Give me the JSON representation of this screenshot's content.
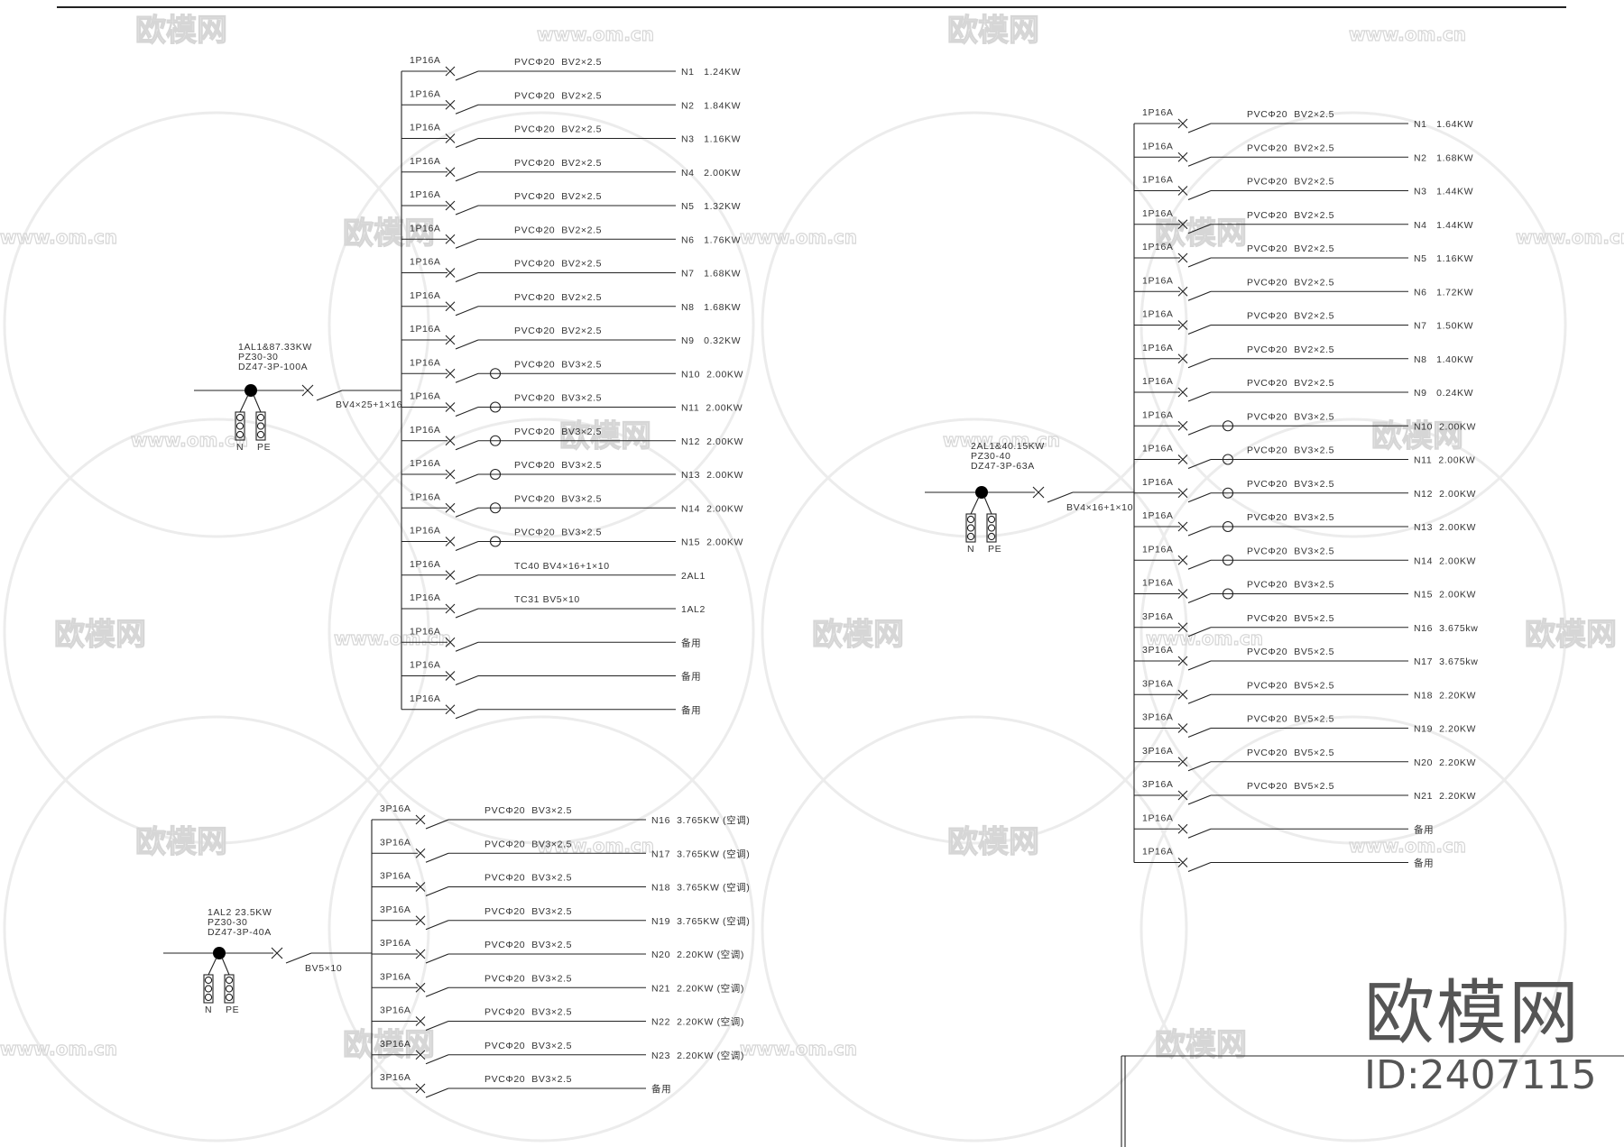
{
  "watermarks": {
    "logo_text": "欧模网",
    "site_text": "www.om.cn",
    "brand": "欧模网",
    "brand_id": "ID:2407115"
  },
  "panels": [
    {
      "id": "1AL1",
      "incoming": {
        "labels": [
          "1AL1&87.33KW",
          "PZ30-30",
          "DZ47-3P-100A"
        ],
        "cable": "BV4×25+1×16",
        "terminal_n": "N",
        "terminal_pe": "PE"
      },
      "circuits": [
        {
          "breaker": "1P16A",
          "cable": "PVCΦ20  BV2×2.5",
          "load": "N1   1.24KW"
        },
        {
          "breaker": "1P16A",
          "cable": "PVCΦ20  BV2×2.5",
          "load": "N2   1.84KW"
        },
        {
          "breaker": "1P16A",
          "cable": "PVCΦ20  BV2×2.5",
          "load": "N3   1.16KW"
        },
        {
          "breaker": "1P16A",
          "cable": "PVCΦ20  BV2×2.5",
          "load": "N4   2.00KW"
        },
        {
          "breaker": "1P16A",
          "cable": "PVCΦ20  BV2×2.5",
          "load": "N5   1.32KW"
        },
        {
          "breaker": "1P16A",
          "cable": "PVCΦ20  BV2×2.5",
          "load": "N6   1.76KW"
        },
        {
          "breaker": "1P16A",
          "cable": "PVCΦ20  BV2×2.5",
          "load": "N7   1.68KW"
        },
        {
          "breaker": "1P16A",
          "cable": "PVCΦ20  BV2×2.5",
          "load": "N8   1.68KW"
        },
        {
          "breaker": "1P16A",
          "cable": "PVCΦ20  BV2×2.5",
          "load": "N9   0.32KW"
        },
        {
          "breaker": "1P16A",
          "cable": "PVCΦ20  BV3×2.5",
          "load": "N10  2.00KW",
          "leakage_protector": true
        },
        {
          "breaker": "1P16A",
          "cable": "PVCΦ20  BV3×2.5",
          "load": "N11  2.00KW",
          "leakage_protector": true
        },
        {
          "breaker": "1P16A",
          "cable": "PVCΦ20  BV3×2.5",
          "load": "N12  2.00KW",
          "leakage_protector": true
        },
        {
          "breaker": "1P16A",
          "cable": "PVCΦ20  BV3×2.5",
          "load": "N13  2.00KW",
          "leakage_protector": true
        },
        {
          "breaker": "1P16A",
          "cable": "PVCΦ20  BV3×2.5",
          "load": "N14  2.00KW",
          "leakage_protector": true
        },
        {
          "breaker": "1P16A",
          "cable": "PVCΦ20  BV3×2.5",
          "load": "N15  2.00KW",
          "leakage_protector": true
        },
        {
          "breaker": "1P16A",
          "cable": "TC40 BV4×16+1×10",
          "load": "2AL1"
        },
        {
          "breaker": "1P16A",
          "cable": "TC31 BV5×10",
          "load": "1AL2"
        },
        {
          "breaker": "1P16A",
          "cable": "",
          "load": "备用"
        },
        {
          "breaker": "1P16A",
          "cable": "",
          "load": "备用"
        },
        {
          "breaker": "1P16A",
          "cable": "",
          "load": "备用"
        }
      ]
    },
    {
      "id": "1AL2",
      "incoming": {
        "labels": [
          "1AL2 23.5KW",
          "PZ30-30",
          "DZ47-3P-40A"
        ],
        "cable": "BV5×10",
        "terminal_n": "N",
        "terminal_pe": "PE"
      },
      "circuits": [
        {
          "breaker": "3P16A",
          "cable": "PVCΦ20  BV3×2.5",
          "load": "N16  3.765KW (空调)"
        },
        {
          "breaker": "3P16A",
          "cable": "PVCΦ20  BV3×2.5",
          "load": "N17  3.765KW (空调)"
        },
        {
          "breaker": "3P16A",
          "cable": "PVCΦ20  BV3×2.5",
          "load": "N18  3.765KW (空调)"
        },
        {
          "breaker": "3P16A",
          "cable": "PVCΦ20  BV3×2.5",
          "load": "N19  3.765KW (空调)"
        },
        {
          "breaker": "3P16A",
          "cable": "PVCΦ20  BV3×2.5",
          "load": "N20  2.20KW (空调)"
        },
        {
          "breaker": "3P16A",
          "cable": "PVCΦ20  BV3×2.5",
          "load": "N21  2.20KW (空调)"
        },
        {
          "breaker": "3P16A",
          "cable": "PVCΦ20  BV3×2.5",
          "load": "N22  2.20KW (空调)"
        },
        {
          "breaker": "3P16A",
          "cable": "PVCΦ20  BV3×2.5",
          "load": "N23  2.20KW (空调)"
        },
        {
          "breaker": "3P16A",
          "cable": "PVCΦ20  BV3×2.5",
          "load": "备用"
        }
      ]
    },
    {
      "id": "2AL1",
      "incoming": {
        "labels": [
          "2AL1&40.15KW",
          "PZ30-40",
          "DZ47-3P-63A"
        ],
        "cable": "BV4×16+1×10",
        "terminal_n": "N",
        "terminal_pe": "PE"
      },
      "circuits": [
        {
          "breaker": "1P16A",
          "cable": "PVCΦ20  BV2×2.5",
          "load": "N1   1.64KW"
        },
        {
          "breaker": "1P16A",
          "cable": "PVCΦ20  BV2×2.5",
          "load": "N2   1.68KW"
        },
        {
          "breaker": "1P16A",
          "cable": "PVCΦ20  BV2×2.5",
          "load": "N3   1.44KW"
        },
        {
          "breaker": "1P16A",
          "cable": "PVCΦ20  BV2×2.5",
          "load": "N4   1.44KW"
        },
        {
          "breaker": "1P16A",
          "cable": "PVCΦ20  BV2×2.5",
          "load": "N5   1.16KW"
        },
        {
          "breaker": "1P16A",
          "cable": "PVCΦ20  BV2×2.5",
          "load": "N6   1.72KW"
        },
        {
          "breaker": "1P16A",
          "cable": "PVCΦ20  BV2×2.5",
          "load": "N7   1.50KW"
        },
        {
          "breaker": "1P16A",
          "cable": "PVCΦ20  BV2×2.5",
          "load": "N8   1.40KW"
        },
        {
          "breaker": "1P16A",
          "cable": "PVCΦ20  BV2×2.5",
          "load": "N9   0.24KW"
        },
        {
          "breaker": "1P16A",
          "cable": "PVCΦ20  BV3×2.5",
          "load": "N10  2.00KW",
          "leakage_protector": true
        },
        {
          "breaker": "1P16A",
          "cable": "PVCΦ20  BV3×2.5",
          "load": "N11  2.00KW",
          "leakage_protector": true
        },
        {
          "breaker": "1P16A",
          "cable": "PVCΦ20  BV3×2.5",
          "load": "N12  2.00KW",
          "leakage_protector": true
        },
        {
          "breaker": "1P16A",
          "cable": "PVCΦ20  BV3×2.5",
          "load": "N13  2.00KW",
          "leakage_protector": true
        },
        {
          "breaker": "1P16A",
          "cable": "PVCΦ20  BV3×2.5",
          "load": "N14  2.00KW",
          "leakage_protector": true
        },
        {
          "breaker": "1P16A",
          "cable": "PVCΦ20  BV3×2.5",
          "load": "N15  2.00KW",
          "leakage_protector": true
        },
        {
          "breaker": "3P16A",
          "cable": "PVCΦ20  BV5×2.5",
          "load": "N16  3.675kw"
        },
        {
          "breaker": "3P16A",
          "cable": "PVCΦ20  BV5×2.5",
          "load": "N17  3.675kw"
        },
        {
          "breaker": "3P16A",
          "cable": "PVCΦ20  BV5×2.5",
          "load": "N18  2.20KW"
        },
        {
          "breaker": "3P16A",
          "cable": "PVCΦ20  BV5×2.5",
          "load": "N19  2.20KW"
        },
        {
          "breaker": "3P16A",
          "cable": "PVCΦ20  BV5×2.5",
          "load": "N20  2.20KW"
        },
        {
          "breaker": "3P16A",
          "cable": "PVCΦ20  BV5×2.5",
          "load": "N21  2.20KW"
        },
        {
          "breaker": "1P16A",
          "cable": "",
          "load": "备用"
        },
        {
          "breaker": "1P16A",
          "cable": "",
          "load": "备用"
        }
      ]
    }
  ]
}
